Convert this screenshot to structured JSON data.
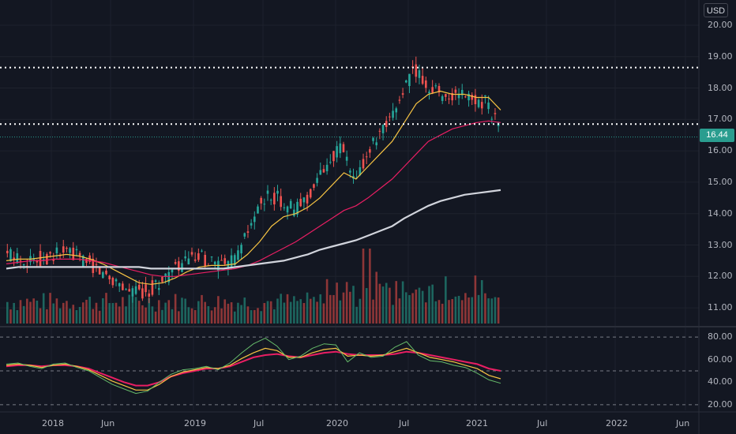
{
  "currency": "USD",
  "current_price": "16.44",
  "colors": {
    "background": "#131722",
    "up": "#26a69a",
    "down": "#ef5350",
    "ma_fast": "#f6c343",
    "ma_mid": "#e91e63",
    "ma_slow": "#d1d4dc",
    "rsi": "#e91e63",
    "rsi_signal": "#f6c343",
    "rsi_fast": "#66bb6a"
  },
  "chart_data": [
    {
      "type": "line",
      "title": "",
      "xlabel": "",
      "ylabel": "",
      "ylim": [
        10.5,
        20.3
      ],
      "x_tick_labels": [
        "2018",
        "Jun",
        "2019",
        "Jul",
        "2020",
        "Jul",
        "2021",
        "Jul",
        "2022",
        "Jun"
      ],
      "y_tick_labels": [
        "20.00",
        "19.00",
        "18.00",
        "17.00",
        "16.00",
        "15.00",
        "14.00",
        "13.00",
        "12.00",
        "11.00"
      ],
      "horizontal_levels": [
        18.65,
        16.85
      ],
      "last_price": 16.44,
      "series": [
        {
          "values": [
            12.7,
            12.6,
            12.5,
            12.6,
            12.7,
            12.8,
            12.6,
            12.4,
            12.1,
            11.9,
            11.6,
            11.5,
            11.6,
            11.9,
            12.2,
            12.5,
            12.6,
            12.5,
            12.3,
            12.5,
            13.3,
            14.2,
            14.6,
            14.4,
            14.1,
            14.5,
            15.1,
            15.8,
            16.1,
            14.9,
            15.9,
            16.4,
            16.9,
            17.9,
            18.6,
            18.1,
            17.9,
            17.7,
            17.8,
            17.6,
            17.6,
            16.8
          ]
        },
        {
          "values": [
            12.5,
            12.55,
            12.55,
            12.6,
            12.65,
            12.7,
            12.65,
            12.55,
            12.4,
            12.2,
            12.0,
            11.8,
            11.75,
            11.8,
            11.95,
            12.15,
            12.3,
            12.35,
            12.35,
            12.4,
            12.7,
            13.1,
            13.6,
            13.9,
            14.0,
            14.2,
            14.5,
            14.9,
            15.3,
            15.1,
            15.5,
            15.9,
            16.3,
            16.9,
            17.5,
            17.8,
            17.9,
            17.8,
            17.8,
            17.7,
            17.7,
            17.3
          ]
        },
        {
          "values": [
            12.4,
            12.45,
            12.5,
            12.5,
            12.55,
            12.55,
            12.55,
            12.5,
            12.45,
            12.35,
            12.25,
            12.15,
            12.05,
            12.0,
            12.0,
            12.05,
            12.1,
            12.15,
            12.2,
            12.25,
            12.35,
            12.5,
            12.7,
            12.9,
            13.1,
            13.35,
            13.6,
            13.85,
            14.1,
            14.25,
            14.5,
            14.8,
            15.1,
            15.5,
            15.9,
            16.3,
            16.5,
            16.7,
            16.8,
            16.9,
            16.95,
            16.9
          ]
        },
        {
          "values": [
            12.25,
            12.3,
            12.3,
            12.3,
            12.3,
            12.3,
            12.3,
            12.3,
            12.3,
            12.3,
            12.3,
            12.3,
            12.25,
            12.25,
            12.25,
            12.25,
            12.25,
            12.25,
            12.25,
            12.3,
            12.35,
            12.4,
            12.45,
            12.5,
            12.6,
            12.7,
            12.85,
            12.95,
            13.05,
            13.15,
            13.3,
            13.45,
            13.6,
            13.85,
            14.05,
            14.25,
            14.4,
            14.5,
            14.6,
            14.65,
            14.7,
            14.75
          ]
        }
      ]
    },
    {
      "type": "line",
      "title": "",
      "ylim": [
        15,
        85
      ],
      "y_tick_labels": [
        "80.00",
        "60.00",
        "40.00",
        "20.00"
      ],
      "levels": [
        80,
        50,
        20
      ],
      "series": [
        {
          "values": [
            54,
            55,
            55,
            54,
            55,
            55,
            54,
            52,
            48,
            44,
            40,
            37,
            37,
            40,
            45,
            48,
            50,
            52,
            52,
            54,
            58,
            62,
            64,
            65,
            63,
            62,
            64,
            66,
            67,
            65,
            64,
            64,
            64,
            65,
            67,
            66,
            64,
            62,
            60,
            58,
            56,
            52,
            50
          ]
        },
        {
          "values": [
            55,
            56,
            55,
            53,
            55,
            56,
            54,
            51,
            46,
            41,
            37,
            33,
            33,
            38,
            45,
            49,
            51,
            53,
            52,
            55,
            61,
            66,
            70,
            68,
            62,
            62,
            66,
            69,
            70,
            63,
            64,
            63,
            64,
            67,
            70,
            66,
            62,
            60,
            58,
            55,
            52,
            46,
            43
          ]
        },
        {
          "values": [
            56,
            57,
            54,
            52,
            56,
            57,
            53,
            50,
            44,
            38,
            34,
            30,
            32,
            40,
            47,
            51,
            52,
            54,
            51,
            57,
            66,
            74,
            79,
            72,
            60,
            63,
            70,
            74,
            73,
            58,
            66,
            62,
            63,
            71,
            76,
            64,
            59,
            58,
            55,
            53,
            48,
            42,
            39
          ]
        }
      ]
    }
  ]
}
